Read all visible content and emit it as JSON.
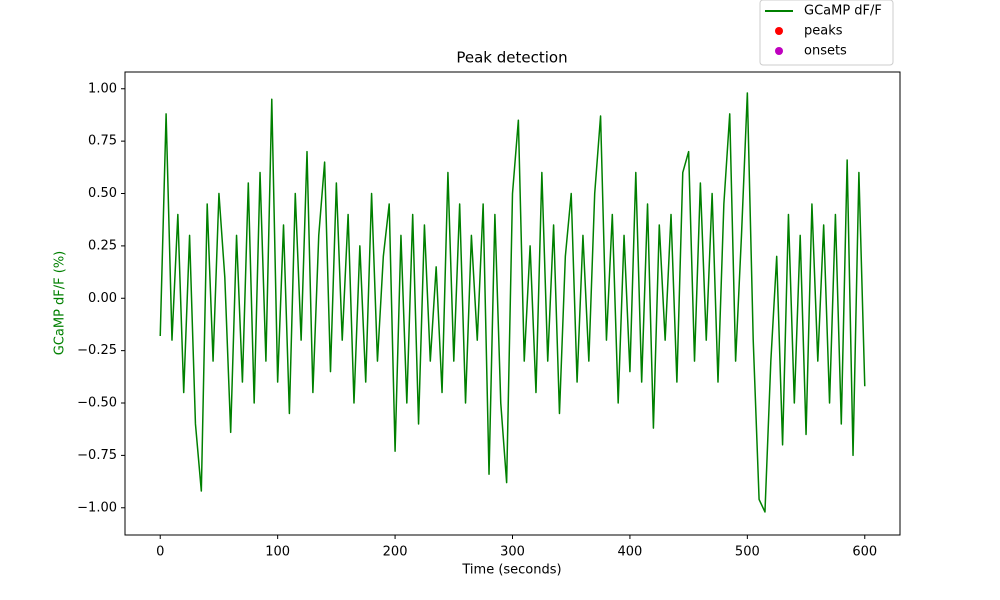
{
  "chart_data": {
    "type": "line",
    "title": "Peak detection",
    "xlabel": "Time (seconds)",
    "ylabel": "GCaMP dF/F (%)",
    "ylabel_color": "#008000",
    "xlim": [
      -30,
      630
    ],
    "ylim": [
      -1.13,
      1.08
    ],
    "xticks": [
      0,
      100,
      200,
      300,
      400,
      500,
      600
    ],
    "yticks": [
      {
        "value": -1,
        "label": "−1.00"
      },
      {
        "value": -0.75,
        "label": "−0.75"
      },
      {
        "value": -0.5,
        "label": "−0.50"
      },
      {
        "value": -0.25,
        "label": "−0.25"
      },
      {
        "value": 0,
        "label": "0.00"
      },
      {
        "value": 0.25,
        "label": "0.25"
      },
      {
        "value": 0.5,
        "label": "0.50"
      },
      {
        "value": 0.75,
        "label": "0.75"
      },
      {
        "value": 1,
        "label": "1.00"
      }
    ],
    "legend": "outside upper right",
    "series": [
      {
        "name": "GCaMP dF/F",
        "color": "#008000",
        "x": [
          0,
          5,
          10,
          15,
          20,
          25,
          30,
          35,
          40,
          45,
          50,
          55,
          60,
          65,
          70,
          75,
          80,
          85,
          90,
          95,
          100,
          105,
          110,
          115,
          120,
          125,
          130,
          135,
          140,
          145,
          150,
          155,
          160,
          165,
          170,
          175,
          180,
          185,
          190,
          195,
          200,
          205,
          210,
          215,
          220,
          225,
          230,
          235,
          240,
          245,
          250,
          255,
          260,
          265,
          270,
          275,
          280,
          285,
          290,
          295,
          300,
          305,
          310,
          315,
          320,
          325,
          330,
          335,
          340,
          345,
          350,
          355,
          360,
          365,
          370,
          375,
          380,
          385,
          390,
          395,
          400,
          405,
          410,
          415,
          420,
          425,
          430,
          435,
          440,
          445,
          450,
          455,
          460,
          465,
          470,
          475,
          480,
          485,
          490,
          495,
          500,
          505,
          510,
          515,
          520,
          525,
          530,
          535,
          540,
          545,
          550,
          555,
          560,
          565,
          570,
          575,
          580,
          585,
          590,
          595,
          600
        ],
        "values": [
          -0.18,
          0.88,
          -0.2,
          0.4,
          -0.45,
          0.3,
          -0.6,
          -0.92,
          0.45,
          -0.3,
          0.5,
          0.1,
          -0.64,
          0.3,
          -0.4,
          0.55,
          -0.5,
          0.6,
          -0.3,
          0.95,
          -0.4,
          0.35,
          -0.55,
          0.5,
          -0.2,
          0.7,
          -0.45,
          0.3,
          0.65,
          -0.35,
          0.55,
          -0.2,
          0.4,
          -0.5,
          0.25,
          -0.4,
          0.5,
          -0.3,
          0.2,
          0.45,
          -0.73,
          0.3,
          -0.5,
          0.4,
          -0.6,
          0.35,
          -0.3,
          0.15,
          -0.45,
          0.6,
          -0.3,
          0.45,
          -0.5,
          0.3,
          -0.2,
          0.45,
          -0.84,
          0.4,
          -0.5,
          -0.88,
          0.5,
          0.85,
          -0.3,
          0.25,
          -0.45,
          0.6,
          -0.3,
          0.35,
          -0.55,
          0.2,
          0.5,
          -0.4,
          0.3,
          -0.3,
          0.5,
          0.87,
          -0.2,
          0.4,
          -0.5,
          0.3,
          -0.35,
          0.6,
          -0.4,
          0.45,
          -0.62,
          0.35,
          -0.2,
          0.4,
          -0.4,
          0.6,
          0.7,
          -0.3,
          0.55,
          -0.2,
          0.5,
          -0.4,
          0.45,
          0.88,
          -0.3,
          0.3,
          0.98,
          -0.2,
          -0.96,
          -1.02,
          -0.3,
          0.2,
          -0.7,
          0.4,
          -0.5,
          0.3,
          -0.65,
          0.45,
          -0.3,
          0.35,
          -0.5,
          0.4,
          -0.6,
          0.66,
          -0.75,
          0.6,
          -0.42
        ]
      },
      {
        "name": "peaks",
        "color": "#ff0000",
        "marker": "o",
        "x": [],
        "values": []
      },
      {
        "name": "onsets",
        "color": "#bf00bf",
        "marker": "o",
        "x": [],
        "values": []
      }
    ]
  }
}
